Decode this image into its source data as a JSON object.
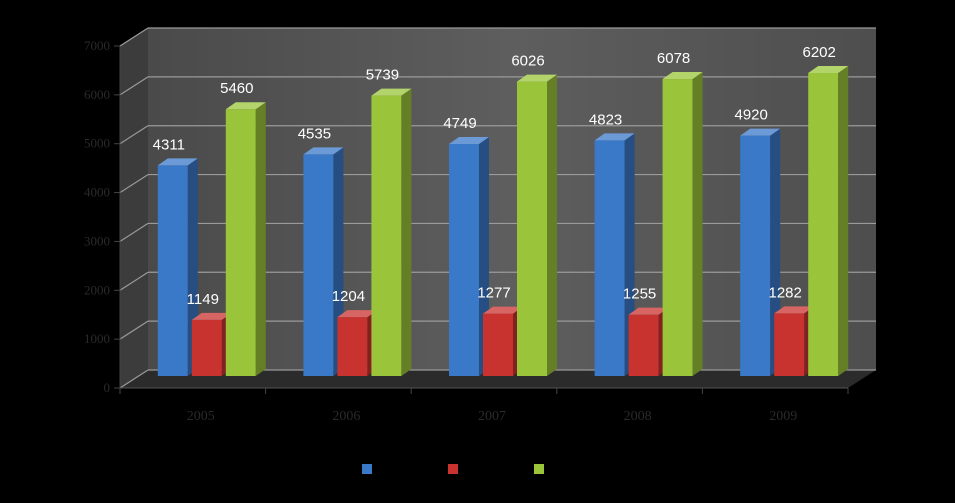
{
  "chart_data": {
    "type": "bar",
    "title": "",
    "xlabel": "",
    "ylabel": "",
    "categories": [
      "2005",
      "2006",
      "2007",
      "2008",
      "2009"
    ],
    "series": [
      {
        "values": [
          4311,
          4535,
          4749,
          4823,
          4920
        ],
        "color": "#3a78c8"
      },
      {
        "values": [
          1149,
          1204,
          1277,
          1255,
          1282
        ],
        "color": "#c8322f"
      },
      {
        "values": [
          5460,
          5739,
          6026,
          6078,
          6202
        ],
        "color": "#9ac43a"
      }
    ],
    "ylim": [
      0,
      7000
    ],
    "yticks": [
      0,
      1000,
      2000,
      3000,
      4000,
      5000,
      6000,
      7000
    ],
    "grid": true,
    "legend": "bottom",
    "style": "3d-clustered-column",
    "colors": {
      "background": "#000000",
      "plot_back_wall": "#5a5a5a",
      "plot_floor": "#2b2b2b",
      "gridline": "#9a9a9a",
      "axis_text": "#2a2a2a",
      "value_label": "#ffffff"
    }
  }
}
